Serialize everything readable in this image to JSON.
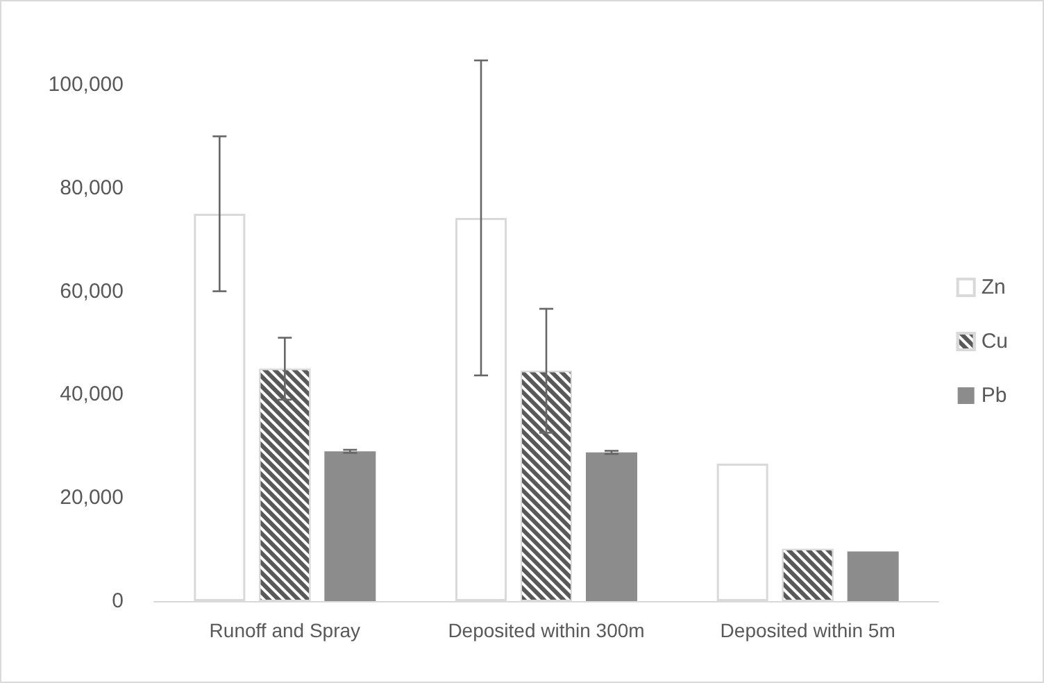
{
  "chart_data": {
    "type": "bar",
    "categories": [
      "Runoff and Spray",
      "Deposited within 300m",
      "Deposited within 5m"
    ],
    "series": [
      {
        "name": "Zn",
        "color": "#ffffff",
        "values": [
          75000,
          74200,
          26600
        ],
        "errors": [
          15000,
          30500,
          null
        ]
      },
      {
        "name": "Cu",
        "color": "#595959",
        "values": [
          45000,
          44600,
          10100
        ],
        "errors": [
          6000,
          12000,
          null
        ]
      },
      {
        "name": "Pb",
        "color": "#8c8c8c",
        "values": [
          29000,
          28800,
          9600
        ],
        "errors": [
          300,
          300,
          null
        ]
      }
    ],
    "ylim": [
      0,
      100000
    ],
    "yticks": [
      0,
      {
        "value": 20000,
        "label": "20,000"
      },
      {
        "value": 40000,
        "label": "40,000"
      },
      {
        "value": 60000,
        "label": "60,000"
      },
      {
        "value": 80000,
        "label": "80,000"
      },
      {
        "value": 100000,
        "label": "100,000"
      }
    ],
    "grid": false,
    "legend": "right"
  }
}
